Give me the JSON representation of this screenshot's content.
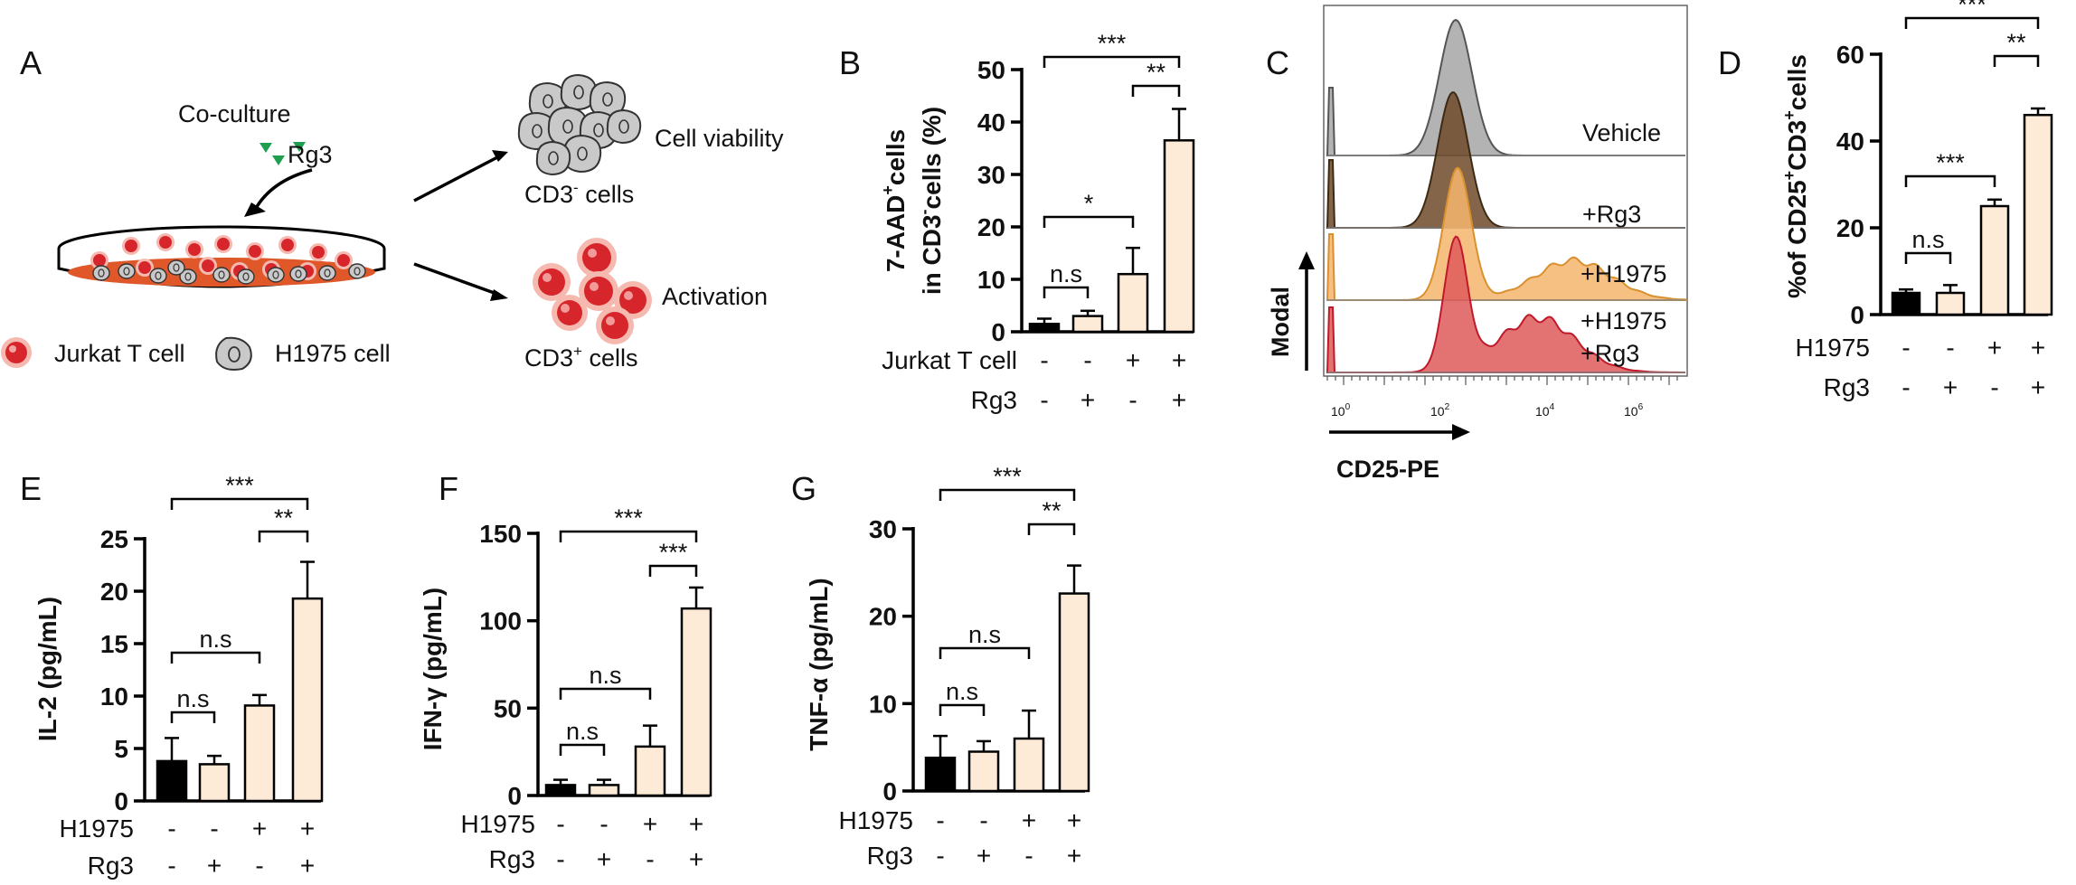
{
  "colors": {
    "black": "#000000",
    "cream": "#FDEBD7",
    "dish_orange": "#E0572A",
    "green": "#1E9E4E",
    "cell_red": "#D7262B",
    "cell_halo": "#F5B9B0",
    "gray_cell": "#C9C9C9",
    "hist_gray": "#A6A6A6",
    "hist_brown": "#6E4A29",
    "hist_orange": "#F6B56D",
    "hist_red": "#DE5B5B"
  },
  "panelA": {
    "letter": "A",
    "coculture": "Co-culture",
    "rg3": "Rg3",
    "viability": "Cell viability",
    "cd3neg": "CD3",
    "cd3neg_sup": "-",
    "cells": " cells",
    "activation": "Activation",
    "cd3pos": "CD3",
    "cd3pos_sup": "+",
    "legend_jurkat": "Jurkat T cell",
    "legend_h1975": "H1975 cell"
  },
  "panelC": {
    "letter": "C",
    "histograms": [
      "Vehicle",
      "+Rg3",
      "+H1975",
      "+H1975",
      "+Rg3"
    ],
    "ylabel": "Modal",
    "xlabel": "CD25-PE",
    "ticks": [
      "10",
      "0",
      "10",
      "2",
      "10",
      "4",
      "10",
      "6"
    ]
  },
  "chart_data": [
    {
      "letter": "B",
      "type": "bar",
      "ylabel_line1": "7-AAD",
      "ylabel_sup1": "+",
      "ylabel_rest1": "cells",
      "ylabel_line2": "in CD3",
      "ylabel_sup2": "-",
      "ylabel_rest2": "cells (%)",
      "ylim": [
        0,
        50
      ],
      "yticks": [
        "0",
        "10",
        "20",
        "30",
        "40",
        "50"
      ],
      "values": [
        1.5,
        3,
        11,
        36.5
      ],
      "errors": [
        1,
        1,
        5,
        6
      ],
      "rows": [
        {
          "label": "Jurkat T cell",
          "signs": [
            "-",
            "-",
            "+",
            "+"
          ]
        },
        {
          "label": "Rg3",
          "signs": [
            "-",
            "+",
            "-",
            "+"
          ]
        }
      ],
      "sig": [
        {
          "label": "***"
        },
        {
          "label": "**"
        },
        {
          "label": "*"
        },
        {
          "label": "n.s"
        }
      ]
    },
    {
      "letter": "D",
      "type": "bar",
      "ylabel_pre": "%of CD25",
      "ylabel_sup1": "+",
      "ylabel_mid": "CD3",
      "ylabel_sup2": "+",
      "ylabel_post": "cells",
      "ylim": [
        0,
        60
      ],
      "yticks": [
        "0",
        "20",
        "40",
        "60"
      ],
      "values": [
        5,
        5,
        25,
        46
      ],
      "errors": [
        0.8,
        1.8,
        1.5,
        1.5
      ],
      "rows": [
        {
          "label": "H1975",
          "signs": [
            "-",
            "-",
            "+",
            "+"
          ]
        },
        {
          "label": "Rg3",
          "signs": [
            "-",
            "+",
            "-",
            "+"
          ]
        }
      ],
      "sig": [
        {
          "label": "***"
        },
        {
          "label": "**"
        },
        {
          "label": "***"
        },
        {
          "label": "n.s"
        }
      ]
    },
    {
      "letter": "E",
      "type": "bar",
      "ylabel": "IL-2 (pg/mL)",
      "ylim": [
        0,
        25
      ],
      "yticks": [
        "0",
        "5",
        "10",
        "15",
        "20",
        "25"
      ],
      "values": [
        3.8,
        3.5,
        9.1,
        19.3
      ],
      "errors": [
        2.2,
        0.8,
        1,
        3.5
      ],
      "rows": [
        {
          "label": "H1975",
          "signs": [
            "-",
            "-",
            "+",
            "+"
          ]
        },
        {
          "label": "Rg3",
          "signs": [
            "-",
            "+",
            "-",
            "+"
          ]
        }
      ],
      "sig": [
        {
          "label": "***"
        },
        {
          "label": "**"
        },
        {
          "label": "n.s"
        },
        {
          "label": "n.s"
        }
      ]
    },
    {
      "letter": "F",
      "type": "bar",
      "ylabel": "IFN-γ (pg/mL)",
      "ylim": [
        0,
        150
      ],
      "yticks": [
        "0",
        "50",
        "100",
        "150"
      ],
      "values": [
        6,
        6,
        28,
        107
      ],
      "errors": [
        3,
        3,
        12,
        12
      ],
      "rows": [
        {
          "label": "H1975",
          "signs": [
            "-",
            "-",
            "+",
            "+"
          ]
        },
        {
          "label": "Rg3",
          "signs": [
            "-",
            "+",
            "-",
            "+"
          ]
        }
      ],
      "sig": [
        {
          "label": "***"
        },
        {
          "label": "***"
        },
        {
          "label": "n.s"
        },
        {
          "label": "n.s"
        }
      ]
    },
    {
      "letter": "G",
      "type": "bar",
      "ylabel": "TNF-α (pg/mL)",
      "ylim": [
        0,
        30
      ],
      "yticks": [
        "0",
        "10",
        "20",
        "30"
      ],
      "values": [
        3.8,
        4.5,
        6,
        22.6
      ],
      "errors": [
        2.5,
        1.2,
        3.2,
        3.2
      ],
      "rows": [
        {
          "label": "H1975",
          "signs": [
            "-",
            "-",
            "+",
            "+"
          ]
        },
        {
          "label": "Rg3",
          "signs": [
            "-",
            "+",
            "-",
            "+"
          ]
        }
      ],
      "sig": [
        {
          "label": "***"
        },
        {
          "label": "**"
        },
        {
          "label": "n.s"
        },
        {
          "label": "n.s"
        }
      ]
    }
  ]
}
